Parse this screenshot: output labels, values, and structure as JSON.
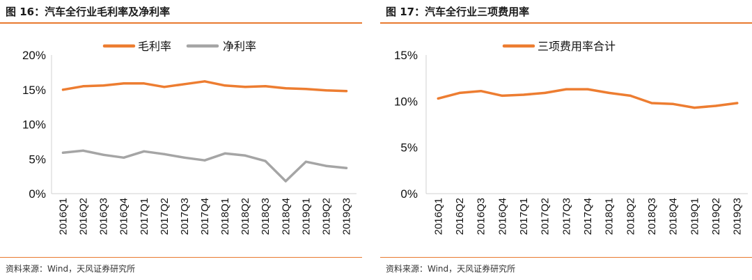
{
  "left": {
    "title": "图 16：汽车全行业毛利率及净利率",
    "source": "资料来源：Wind，天风证券研究所"
  },
  "right": {
    "title": "图 17：汽车全行业三项费用率",
    "source": "资料来源：Wind，天风证券研究所"
  },
  "colors": {
    "accent": "#e8792e",
    "series_orange": "#ed7d31",
    "series_gray": "#a5a5a5"
  },
  "chart_data": [
    {
      "type": "line",
      "categories": [
        "2016Q1",
        "2016Q2",
        "2016Q3",
        "2016Q4",
        "2017Q1",
        "2017Q2",
        "2017Q3",
        "2017Q4",
        "2018Q1",
        "2018Q2",
        "2018Q3",
        "2018Q4",
        "2019Q1",
        "2019Q2",
        "2019Q3"
      ],
      "series": [
        {
          "name": "毛利率",
          "color": "#ed7d31",
          "values": [
            15.0,
            15.5,
            15.6,
            15.9,
            15.9,
            15.4,
            15.8,
            16.2,
            15.6,
            15.4,
            15.5,
            15.2,
            15.1,
            14.9,
            14.8
          ]
        },
        {
          "name": "净利率",
          "color": "#a5a5a5",
          "values": [
            5.9,
            6.2,
            5.6,
            5.2,
            6.1,
            5.7,
            5.2,
            4.8,
            5.8,
            5.5,
            4.7,
            1.8,
            4.6,
            4.0,
            3.7
          ]
        }
      ],
      "ylim": [
        0,
        20
      ],
      "yticks": [
        "0%",
        "5%",
        "10%",
        "15%",
        "20%"
      ],
      "legend_position": "top-center",
      "grid": false
    },
    {
      "type": "line",
      "categories": [
        "2016Q1",
        "2016Q2",
        "2016Q3",
        "2016Q4",
        "2017Q1",
        "2017Q2",
        "2017Q3",
        "2017Q4",
        "2018Q1",
        "2018Q2",
        "2018Q3",
        "2018Q4",
        "2019Q1",
        "2019Q2",
        "2019Q3"
      ],
      "series": [
        {
          "name": "三项费用率合计",
          "color": "#ed7d31",
          "values": [
            10.3,
            10.9,
            11.1,
            10.6,
            10.7,
            10.9,
            11.3,
            11.3,
            10.9,
            10.6,
            9.8,
            9.7,
            9.3,
            9.5,
            9.8
          ]
        }
      ],
      "ylim": [
        0,
        15
      ],
      "yticks": [
        "0%",
        "5%",
        "10%",
        "15%"
      ],
      "legend_position": "top-center",
      "grid": false
    }
  ]
}
